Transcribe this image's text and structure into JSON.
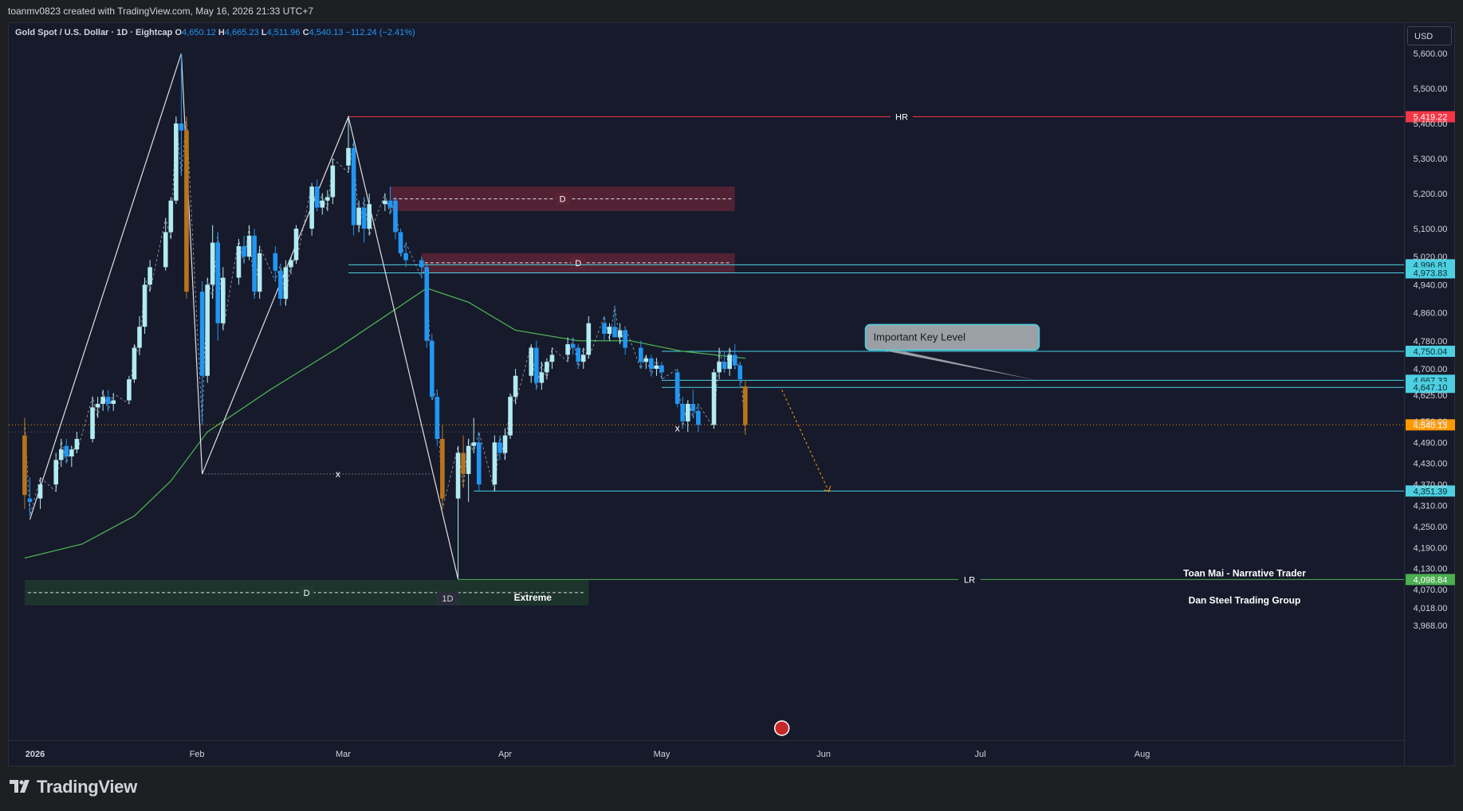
{
  "header": {
    "attribution": "toanmv0823 created with TradingView.com, May 16, 2026 21:33 UTC+7"
  },
  "legend": {
    "symbol": "Gold Spot / U.S. Dollar · 1D · Eightcap",
    "open_label": "O",
    "open": "4,650.12",
    "high_label": "H",
    "high": "4,665.23",
    "low_label": "L",
    "low": "4,511.96",
    "close_label": "C",
    "close": "4,540.13",
    "change": "−112.24 (−2.41%)"
  },
  "currency_button": "USD",
  "brand": {
    "name": "TradingView",
    "icon": "tradingview-logo-icon"
  },
  "colors": {
    "background": "#161a2b",
    "candle_up": "#b2ebf2",
    "candle_down": "#2196f3",
    "candle_last": "#b8741a",
    "ma": "#4caf50",
    "hr_line": "#f23645",
    "lr_line": "#4caf50",
    "level_line": "#4dd0e1",
    "zone_supply": "#5a2436",
    "zone_demand": "#1e3a2e"
  },
  "chart_data": {
    "type": "candlestick",
    "symbol": "XAUUSD",
    "timeframe": "1D",
    "ylim": [
      3940,
      5640
    ],
    "y_ticks": [
      5600,
      5500,
      5400,
      5300,
      5200,
      5100,
      5020,
      4940,
      4860,
      4780,
      4700,
      4625,
      4550,
      4490,
      4430,
      4370,
      4310,
      4250,
      4190,
      4130,
      4070,
      4018,
      3968
    ],
    "y_tick_labels": [
      "5,600.00",
      "5,500.00",
      "5,400.00",
      "5,300.00",
      "5,200.00",
      "5,100.00",
      "5,020.00",
      "4,940.00",
      "4,860.00",
      "4,780.00",
      "4,700.00",
      "4,625.00",
      "4,550.00",
      "4,490.00",
      "4,430.00",
      "4,370.00",
      "4,310.00",
      "4,250.00",
      "4,190.00",
      "4,130.00",
      "4,070.00",
      "4,018.00",
      "3,968.00"
    ],
    "x_ticks": [
      "2026",
      "Feb",
      "Mar",
      "Apr",
      "May",
      "Jun",
      "Jul",
      "Aug"
    ],
    "x_tick_dates": [
      "2026-01-01",
      "2026-02-01",
      "2026-03-01",
      "2026-04-01",
      "2026-05-01",
      "2026-06-01",
      "2026-07-01",
      "2026-08-01"
    ],
    "candles": [
      {
        "date": "2025-12-30",
        "o": 4510,
        "h": 4560,
        "l": 4300,
        "c": 4340
      },
      {
        "date": "2025-12-31",
        "o": 4330,
        "h": 4390,
        "l": 4280,
        "c": 4320
      },
      {
        "date": "2026-01-02",
        "o": 4330,
        "h": 4390,
        "l": 4300,
        "c": 4370
      },
      {
        "date": "2026-01-05",
        "o": 4370,
        "h": 4460,
        "l": 4350,
        "c": 4440
      },
      {
        "date": "2026-01-06",
        "o": 4440,
        "h": 4500,
        "l": 4420,
        "c": 4470
      },
      {
        "date": "2026-01-07",
        "o": 4480,
        "h": 4500,
        "l": 4430,
        "c": 4450
      },
      {
        "date": "2026-01-08",
        "o": 4450,
        "h": 4480,
        "l": 4420,
        "c": 4470
      },
      {
        "date": "2026-01-09",
        "o": 4470,
        "h": 4520,
        "l": 4460,
        "c": 4500
      },
      {
        "date": "2026-01-12",
        "o": 4500,
        "h": 4620,
        "l": 4490,
        "c": 4590
      },
      {
        "date": "2026-01-13",
        "o": 4590,
        "h": 4620,
        "l": 4560,
        "c": 4600
      },
      {
        "date": "2026-01-14",
        "o": 4600,
        "h": 4640,
        "l": 4580,
        "c": 4620
      },
      {
        "date": "2026-01-15",
        "o": 4620,
        "h": 4640,
        "l": 4580,
        "c": 4600
      },
      {
        "date": "2026-01-16",
        "o": 4600,
        "h": 4630,
        "l": 4580,
        "c": 4610
      },
      {
        "date": "2026-01-19",
        "o": 4610,
        "h": 4680,
        "l": 4600,
        "c": 4670
      },
      {
        "date": "2026-01-20",
        "o": 4670,
        "h": 4770,
        "l": 4660,
        "c": 4760
      },
      {
        "date": "2026-01-21",
        "o": 4760,
        "h": 4850,
        "l": 4740,
        "c": 4820
      },
      {
        "date": "2026-01-22",
        "o": 4820,
        "h": 4960,
        "l": 4800,
        "c": 4940
      },
      {
        "date": "2026-01-23",
        "o": 4940,
        "h": 5010,
        "l": 4920,
        "c": 4990
      },
      {
        "date": "2026-01-26",
        "o": 4990,
        "h": 5130,
        "l": 4980,
        "c": 5090
      },
      {
        "date": "2026-01-27",
        "o": 5090,
        "h": 5190,
        "l": 5070,
        "c": 5180
      },
      {
        "date": "2026-01-28",
        "o": 5180,
        "h": 5420,
        "l": 5170,
        "c": 5400
      },
      {
        "date": "2026-01-29",
        "o": 5400,
        "h": 5600,
        "l": 5250,
        "c": 5380
      },
      {
        "date": "2026-01-30",
        "o": 5380,
        "h": 5420,
        "l": 4900,
        "c": 4920
      },
      {
        "date": "2026-02-02",
        "o": 4920,
        "h": 4950,
        "l": 4540,
        "c": 4680
      },
      {
        "date": "2026-02-03",
        "o": 4680,
        "h": 4960,
        "l": 4660,
        "c": 4940
      },
      {
        "date": "2026-02-04",
        "o": 4940,
        "h": 5110,
        "l": 4900,
        "c": 5060
      },
      {
        "date": "2026-02-05",
        "o": 5060,
        "h": 5090,
        "l": 4780,
        "c": 4830
      },
      {
        "date": "2026-02-06",
        "o": 4830,
        "h": 4990,
        "l": 4810,
        "c": 4960
      },
      {
        "date": "2026-02-09",
        "o": 4960,
        "h": 5070,
        "l": 4940,
        "c": 5050
      },
      {
        "date": "2026-02-10",
        "o": 5050,
        "h": 5080,
        "l": 5000,
        "c": 5020
      },
      {
        "date": "2026-02-11",
        "o": 5020,
        "h": 5110,
        "l": 5010,
        "c": 5080
      },
      {
        "date": "2026-02-12",
        "o": 5080,
        "h": 5100,
        "l": 4900,
        "c": 4920
      },
      {
        "date": "2026-02-13",
        "o": 4920,
        "h": 5050,
        "l": 4900,
        "c": 5030
      },
      {
        "date": "2026-02-16",
        "o": 5030,
        "h": 5050,
        "l": 4950,
        "c": 4980
      },
      {
        "date": "2026-02-17",
        "o": 4980,
        "h": 5000,
        "l": 4880,
        "c": 4900
      },
      {
        "date": "2026-02-18",
        "o": 4900,
        "h": 5010,
        "l": 4880,
        "c": 4990
      },
      {
        "date": "2026-02-19",
        "o": 4990,
        "h": 5020,
        "l": 4970,
        "c": 5010
      },
      {
        "date": "2026-02-20",
        "o": 5010,
        "h": 5110,
        "l": 5000,
        "c": 5100
      },
      {
        "date": "2026-02-23",
        "o": 5100,
        "h": 5230,
        "l": 5080,
        "c": 5220
      },
      {
        "date": "2026-02-24",
        "o": 5220,
        "h": 5240,
        "l": 5150,
        "c": 5160
      },
      {
        "date": "2026-02-25",
        "o": 5160,
        "h": 5200,
        "l": 5140,
        "c": 5180
      },
      {
        "date": "2026-02-26",
        "o": 5180,
        "h": 5210,
        "l": 5150,
        "c": 5190
      },
      {
        "date": "2026-02-27",
        "o": 5190,
        "h": 5300,
        "l": 5170,
        "c": 5280
      },
      {
        "date": "2026-03-02",
        "o": 5280,
        "h": 5420,
        "l": 5260,
        "c": 5330
      },
      {
        "date": "2026-03-03",
        "o": 5330,
        "h": 5350,
        "l": 5080,
        "c": 5110
      },
      {
        "date": "2026-03-04",
        "o": 5110,
        "h": 5180,
        "l": 5090,
        "c": 5160
      },
      {
        "date": "2026-03-05",
        "o": 5160,
        "h": 5190,
        "l": 5060,
        "c": 5100
      },
      {
        "date": "2026-03-06",
        "o": 5100,
        "h": 5200,
        "l": 5080,
        "c": 5170
      },
      {
        "date": "2026-03-09",
        "o": 5170,
        "h": 5200,
        "l": 5150,
        "c": 5180
      },
      {
        "date": "2026-03-10",
        "o": 5180,
        "h": 5220,
        "l": 5140,
        "c": 5160
      },
      {
        "date": "2026-03-11",
        "o": 5180,
        "h": 5190,
        "l": 5070,
        "c": 5090
      },
      {
        "date": "2026-03-12",
        "o": 5090,
        "h": 5100,
        "l": 5020,
        "c": 5030
      },
      {
        "date": "2026-03-13",
        "o": 5030,
        "h": 5060,
        "l": 4990,
        "c": 5010
      },
      {
        "date": "2026-03-16",
        "o": 5010,
        "h": 5020,
        "l": 4960,
        "c": 4990
      },
      {
        "date": "2026-03-17",
        "o": 4990,
        "h": 5000,
        "l": 4760,
        "c": 4780
      },
      {
        "date": "2026-03-18",
        "o": 4780,
        "h": 4800,
        "l": 4610,
        "c": 4620
      },
      {
        "date": "2026-03-19",
        "o": 4620,
        "h": 4640,
        "l": 4480,
        "c": 4500
      },
      {
        "date": "2026-03-20",
        "o": 4500,
        "h": 4540,
        "l": 4300,
        "c": 4330
      },
      {
        "date": "2026-03-23",
        "o": 4330,
        "h": 4480,
        "l": 4100,
        "c": 4460
      },
      {
        "date": "2026-03-24",
        "o": 4460,
        "h": 4510,
        "l": 4360,
        "c": 4400
      },
      {
        "date": "2026-03-25",
        "o": 4400,
        "h": 4500,
        "l": 4320,
        "c": 4480
      },
      {
        "date": "2026-03-26",
        "o": 4480,
        "h": 4560,
        "l": 4460,
        "c": 4490
      },
      {
        "date": "2026-03-27",
        "o": 4490,
        "h": 4520,
        "l": 4350,
        "c": 4370
      },
      {
        "date": "2026-03-30",
        "o": 4370,
        "h": 4510,
        "l": 4350,
        "c": 4490
      },
      {
        "date": "2026-03-31",
        "o": 4490,
        "h": 4510,
        "l": 4440,
        "c": 4460
      },
      {
        "date": "2026-04-01",
        "o": 4460,
        "h": 4530,
        "l": 4440,
        "c": 4510
      },
      {
        "date": "2026-04-02",
        "o": 4510,
        "h": 4630,
        "l": 4500,
        "c": 4620
      },
      {
        "date": "2026-04-03",
        "o": 4620,
        "h": 4700,
        "l": 4600,
        "c": 4680
      },
      {
        "date": "2026-04-06",
        "o": 4680,
        "h": 4770,
        "l": 4660,
        "c": 4760
      },
      {
        "date": "2026-04-07",
        "o": 4760,
        "h": 4780,
        "l": 4640,
        "c": 4660
      },
      {
        "date": "2026-04-08",
        "o": 4660,
        "h": 4720,
        "l": 4640,
        "c": 4690
      },
      {
        "date": "2026-04-09",
        "o": 4690,
        "h": 4730,
        "l": 4670,
        "c": 4720
      },
      {
        "date": "2026-04-10",
        "o": 4720,
        "h": 4760,
        "l": 4700,
        "c": 4740
      },
      {
        "date": "2026-04-13",
        "o": 4740,
        "h": 4790,
        "l": 4720,
        "c": 4770
      },
      {
        "date": "2026-04-14",
        "o": 4770,
        "h": 4790,
        "l": 4740,
        "c": 4760
      },
      {
        "date": "2026-04-15",
        "o": 4760,
        "h": 4770,
        "l": 4700,
        "c": 4720
      },
      {
        "date": "2026-04-16",
        "o": 4720,
        "h": 4760,
        "l": 4700,
        "c": 4740
      },
      {
        "date": "2026-04-17",
        "o": 4740,
        "h": 4850,
        "l": 4730,
        "c": 4830
      },
      {
        "date": "2026-04-20",
        "o": 4830,
        "h": 4850,
        "l": 4780,
        "c": 4800
      },
      {
        "date": "2026-04-21",
        "o": 4800,
        "h": 4830,
        "l": 4780,
        "c": 4820
      },
      {
        "date": "2026-04-22",
        "o": 4820,
        "h": 4880,
        "l": 4790,
        "c": 4790
      },
      {
        "date": "2026-04-23",
        "o": 4790,
        "h": 4830,
        "l": 4770,
        "c": 4810
      },
      {
        "date": "2026-04-24",
        "o": 4810,
        "h": 4820,
        "l": 4740,
        "c": 4760
      },
      {
        "date": "2026-04-27",
        "o": 4760,
        "h": 4780,
        "l": 4700,
        "c": 4720
      },
      {
        "date": "2026-04-28",
        "o": 4720,
        "h": 4740,
        "l": 4700,
        "c": 4730
      },
      {
        "date": "2026-04-29",
        "o": 4730,
        "h": 4740,
        "l": 4680,
        "c": 4700
      },
      {
        "date": "2026-04-30",
        "o": 4700,
        "h": 4730,
        "l": 4680,
        "c": 4710
      },
      {
        "date": "2026-05-01",
        "o": 4710,
        "h": 4720,
        "l": 4670,
        "c": 4690
      },
      {
        "date": "2026-05-04",
        "o": 4690,
        "h": 4700,
        "l": 4590,
        "c": 4600
      },
      {
        "date": "2026-05-05",
        "o": 4600,
        "h": 4620,
        "l": 4530,
        "c": 4550
      },
      {
        "date": "2026-05-06",
        "o": 4550,
        "h": 4610,
        "l": 4520,
        "c": 4600
      },
      {
        "date": "2026-05-07",
        "o": 4600,
        "h": 4640,
        "l": 4560,
        "c": 4580
      },
      {
        "date": "2026-05-08",
        "o": 4580,
        "h": 4600,
        "l": 4520,
        "c": 4540
      },
      {
        "date": "2026-05-11",
        "o": 4540,
        "h": 4700,
        "l": 4530,
        "c": 4690
      },
      {
        "date": "2026-05-12",
        "o": 4690,
        "h": 4760,
        "l": 4670,
        "c": 4720
      },
      {
        "date": "2026-05-13",
        "o": 4720,
        "h": 4750,
        "l": 4690,
        "c": 4700
      },
      {
        "date": "2026-05-14",
        "o": 4700,
        "h": 4760,
        "l": 4680,
        "c": 4740
      },
      {
        "date": "2026-05-15",
        "o": 4740,
        "h": 4770,
        "l": 4700,
        "c": 4710
      },
      {
        "date": "2026-05-16",
        "o": 4710,
        "h": 4720,
        "l": 4650,
        "c": 4670
      },
      {
        "date": "2026-05-17",
        "o": 4650,
        "h": 4665,
        "l": 4512,
        "c": 4540
      }
    ],
    "moving_average": [
      {
        "date": "2025-12-30",
        "v": 4160
      },
      {
        "date": "2026-01-10",
        "v": 4200
      },
      {
        "date": "2026-01-20",
        "v": 4280
      },
      {
        "date": "2026-01-27",
        "v": 4380
      },
      {
        "date": "2026-02-03",
        "v": 4520
      },
      {
        "date": "2026-02-15",
        "v": 4640
      },
      {
        "date": "2026-02-28",
        "v": 4760
      },
      {
        "date": "2026-03-10",
        "v": 4860
      },
      {
        "date": "2026-03-17",
        "v": 4930
      },
      {
        "date": "2026-03-25",
        "v": 4890
      },
      {
        "date": "2026-04-03",
        "v": 4810
      },
      {
        "date": "2026-04-15",
        "v": 4780
      },
      {
        "date": "2026-04-25",
        "v": 4780
      },
      {
        "date": "2026-05-05",
        "v": 4750
      },
      {
        "date": "2026-05-17",
        "v": 4730
      }
    ],
    "horizontal_levels": [
      {
        "label": "HR",
        "price": 5419.22,
        "price_label": "5,419.22",
        "color": "#f23645"
      },
      {
        "label": "",
        "price": 4996.81,
        "price_label": "4,996.81",
        "color": "#4dd0e1"
      },
      {
        "label": "",
        "price": 4973.83,
        "price_label": "4,973.83",
        "color": "#4dd0e1"
      },
      {
        "label": "",
        "price": 4750.04,
        "price_label": "4,750.04",
        "color": "#4dd0e1"
      },
      {
        "label": "",
        "price": 4667.33,
        "price_label": "4,667.33",
        "color": "#4dd0e1"
      },
      {
        "label": "",
        "price": 4647.1,
        "price_label": "4,647.10",
        "color": "#4dd0e1"
      },
      {
        "label": "",
        "price": 4540.13,
        "price_label": "4,540.13",
        "color": "#ff9800"
      },
      {
        "label": "",
        "price": 4351.39,
        "price_label": "4,351.39",
        "color": "#4dd0e1"
      },
      {
        "label": "LR",
        "price": 4098.84,
        "price_label": "4,098.84",
        "color": "#4caf50"
      }
    ],
    "zones": [
      {
        "label": "D",
        "from": "2026-03-10",
        "to": "2026-05-15",
        "top": 5220,
        "bottom": 5150,
        "color": "#5a2436"
      },
      {
        "label": "D",
        "from": "2026-03-16",
        "to": "2026-05-15",
        "top": 5030,
        "bottom": 4975,
        "color": "#5a2436"
      },
      {
        "label": "D",
        "from": "2025-12-30",
        "to": "2026-04-17",
        "top": 4098,
        "bottom": 4025,
        "color": "#1e3a2e",
        "sublabel": "Extreme"
      }
    ],
    "x_markers": [
      {
        "label": "x",
        "date": "2026-02-28",
        "price": 4400
      },
      {
        "label": "x",
        "date": "2026-05-04",
        "price": 4530
      }
    ],
    "timeframe_badge": "1D",
    "callout": {
      "text": "Important Key Level",
      "date": "2026-06-09",
      "price": 4790,
      "anchor_date": "2026-05-17",
      "anchor_price": 4667
    },
    "projection": {
      "from_date": "2026-05-24",
      "from_price": 4640,
      "to_date": "2026-06-02",
      "to_price": 4350
    },
    "annotations": [
      "Toan Mai - Narrative Trader",
      "Dan Steel Trading Group"
    ],
    "zigzag_solid": [
      {
        "date": "2025-12-31",
        "price": 4270
      },
      {
        "date": "2026-01-29",
        "price": 5600
      },
      {
        "date": "2026-02-02",
        "price": 4400
      },
      {
        "date": "2026-03-02",
        "price": 5419
      },
      {
        "date": "2026-03-23",
        "price": 4100
      }
    ]
  }
}
